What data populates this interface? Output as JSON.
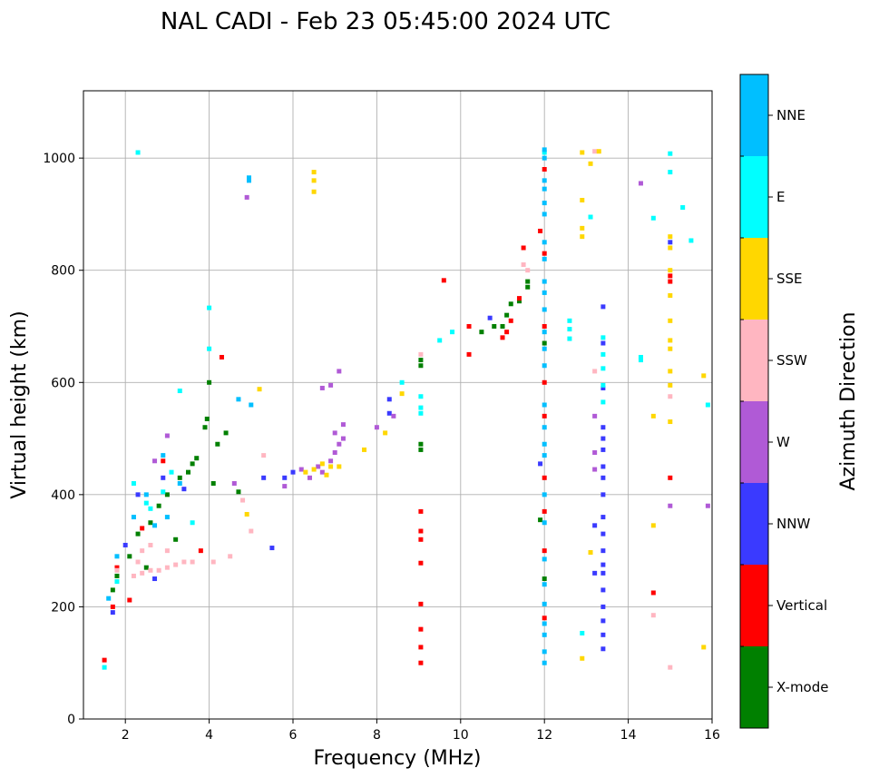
{
  "chart_data": {
    "type": "scatter",
    "title": "NAL CADI - Feb 23 05:45:00 2024 UTC",
    "xlabel": "Frequency (MHz)",
    "ylabel": "Virtual height (km)",
    "xlim": [
      1,
      16
    ],
    "ylim": [
      0,
      1120
    ],
    "xticks": [
      2,
      4,
      6,
      8,
      10,
      12,
      14,
      16
    ],
    "yticks": [
      0,
      200,
      400,
      600,
      800,
      1000
    ],
    "grid": true,
    "colorbar": {
      "label": "Azimuth Direction",
      "categories": [
        "X-mode",
        "Vertical",
        "NNW",
        "W",
        "SSW",
        "SSE",
        "E",
        "NNE"
      ],
      "colors": [
        "#008000",
        "#ff0000",
        "#3a3aff",
        "#b05ad6",
        "#ffb6c1",
        "#ffd700",
        "#00ffff",
        "#00bfff"
      ]
    },
    "series": [
      {
        "name": "X-mode",
        "points": [
          [
            3.6,
            455
          ],
          [
            3.7,
            465
          ],
          [
            3.9,
            520
          ],
          [
            3.95,
            535
          ],
          [
            4.0,
            600
          ],
          [
            3.5,
            440
          ],
          [
            3.3,
            430
          ],
          [
            3.0,
            400
          ],
          [
            2.8,
            380
          ],
          [
            2.6,
            350
          ],
          [
            2.3,
            330
          ],
          [
            2.1,
            290
          ],
          [
            1.8,
            255
          ],
          [
            1.7,
            230
          ],
          [
            4.2,
            490
          ],
          [
            4.4,
            510
          ],
          [
            4.7,
            405
          ],
          [
            9.05,
            490
          ],
          [
            9.05,
            480
          ],
          [
            9.05,
            640
          ],
          [
            9.05,
            630
          ],
          [
            10.5,
            690
          ],
          [
            10.8,
            700
          ],
          [
            11.0,
            700
          ],
          [
            11.1,
            720
          ],
          [
            11.2,
            740
          ],
          [
            11.4,
            745
          ],
          [
            11.6,
            770
          ],
          [
            11.6,
            780
          ],
          [
            12.0,
            250
          ],
          [
            12.0,
            670
          ],
          [
            11.9,
            355
          ],
          [
            4.1,
            420
          ],
          [
            3.2,
            320
          ],
          [
            2.5,
            270
          ]
        ]
      },
      {
        "name": "Vertical",
        "points": [
          [
            9.05,
            100
          ],
          [
            9.05,
            128
          ],
          [
            9.05,
            160
          ],
          [
            9.05,
            205
          ],
          [
            9.05,
            278
          ],
          [
            9.05,
            320
          ],
          [
            9.05,
            335
          ],
          [
            9.05,
            370
          ],
          [
            11.0,
            680
          ],
          [
            11.1,
            690
          ],
          [
            11.2,
            710
          ],
          [
            11.4,
            750
          ],
          [
            11.5,
            840
          ],
          [
            11.9,
            870
          ],
          [
            12.0,
            180
          ],
          [
            12.0,
            300
          ],
          [
            12.0,
            370
          ],
          [
            12.0,
            430
          ],
          [
            12.0,
            540
          ],
          [
            12.0,
            600
          ],
          [
            12.0,
            700
          ],
          [
            12.0,
            830
          ],
          [
            12.0,
            980
          ],
          [
            15.0,
            430
          ],
          [
            15.0,
            780
          ],
          [
            15.0,
            790
          ],
          [
            14.6,
            225
          ],
          [
            10.2,
            700
          ],
          [
            10.2,
            650
          ],
          [
            9.6,
            782
          ],
          [
            4.3,
            645
          ],
          [
            1.5,
            105
          ],
          [
            2.1,
            212
          ],
          [
            3.8,
            300
          ],
          [
            2.9,
            460
          ],
          [
            2.4,
            340
          ],
          [
            1.8,
            270
          ],
          [
            1.7,
            200
          ]
        ]
      },
      {
        "name": "NNW",
        "points": [
          [
            13.4,
            125
          ],
          [
            13.4,
            150
          ],
          [
            13.4,
            175
          ],
          [
            13.4,
            200
          ],
          [
            13.4,
            230
          ],
          [
            13.4,
            260
          ],
          [
            13.4,
            275
          ],
          [
            13.4,
            300
          ],
          [
            13.4,
            330
          ],
          [
            13.4,
            360
          ],
          [
            13.4,
            400
          ],
          [
            13.4,
            430
          ],
          [
            13.4,
            450
          ],
          [
            13.4,
            480
          ],
          [
            13.4,
            500
          ],
          [
            13.4,
            520
          ],
          [
            13.4,
            590
          ],
          [
            13.4,
            670
          ],
          [
            13.4,
            735
          ],
          [
            13.2,
            260
          ],
          [
            13.2,
            345
          ],
          [
            15.0,
            850
          ],
          [
            11.9,
            455
          ],
          [
            8.3,
            545
          ],
          [
            8.3,
            570
          ],
          [
            5.5,
            305
          ],
          [
            6.0,
            440
          ],
          [
            5.3,
            430
          ],
          [
            5.8,
            430
          ],
          [
            1.7,
            190
          ],
          [
            2.3,
            400
          ],
          [
            2.9,
            430
          ],
          [
            10.7,
            715
          ],
          [
            3.4,
            410
          ],
          [
            2.0,
            310
          ],
          [
            2.7,
            250
          ]
        ]
      },
      {
        "name": "W",
        "points": [
          [
            6.7,
            440
          ],
          [
            6.9,
            460
          ],
          [
            7.0,
            475
          ],
          [
            7.1,
            490
          ],
          [
            7.2,
            500
          ],
          [
            7.0,
            510
          ],
          [
            7.2,
            525
          ],
          [
            6.4,
            430
          ],
          [
            6.6,
            450
          ],
          [
            7.1,
            620
          ],
          [
            6.7,
            590
          ],
          [
            6.9,
            595
          ],
          [
            13.2,
            475
          ],
          [
            13.2,
            445
          ],
          [
            13.2,
            540
          ],
          [
            15.0,
            380
          ],
          [
            15.9,
            380
          ],
          [
            14.3,
            955
          ],
          [
            4.9,
            930
          ],
          [
            8.0,
            520
          ],
          [
            8.4,
            540
          ],
          [
            5.8,
            415
          ],
          [
            3.0,
            505
          ],
          [
            2.7,
            460
          ],
          [
            4.6,
            420
          ],
          [
            6.2,
            445
          ]
        ]
      },
      {
        "name": "SSW",
        "points": [
          [
            2.2,
            255
          ],
          [
            2.4,
            260
          ],
          [
            2.6,
            265
          ],
          [
            2.8,
            265
          ],
          [
            3.0,
            270
          ],
          [
            3.2,
            275
          ],
          [
            3.4,
            280
          ],
          [
            3.6,
            280
          ],
          [
            4.1,
            280
          ],
          [
            4.5,
            290
          ],
          [
            2.4,
            300
          ],
          [
            2.6,
            310
          ],
          [
            3.0,
            300
          ],
          [
            2.3,
            280
          ],
          [
            5.0,
            335
          ],
          [
            5.3,
            470
          ],
          [
            4.8,
            390
          ],
          [
            13.2,
            620
          ],
          [
            15.0,
            92
          ],
          [
            15.0,
            575
          ],
          [
            14.6,
            185
          ],
          [
            9.05,
            650
          ],
          [
            11.5,
            810
          ],
          [
            11.6,
            800
          ],
          [
            13.2,
            1012
          ],
          [
            1.8,
            265
          ]
        ]
      },
      {
        "name": "SSE",
        "points": [
          [
            6.3,
            440
          ],
          [
            6.5,
            445
          ],
          [
            6.7,
            455
          ],
          [
            6.9,
            450
          ],
          [
            7.1,
            450
          ],
          [
            6.8,
            435
          ],
          [
            6.5,
            975
          ],
          [
            6.5,
            960
          ],
          [
            6.5,
            940
          ],
          [
            12.9,
            1010
          ],
          [
            13.1,
            990
          ],
          [
            12.9,
            925
          ],
          [
            12.9,
            875
          ],
          [
            12.9,
            860
          ],
          [
            13.3,
            1012
          ],
          [
            12.9,
            108
          ],
          [
            13.1,
            297
          ],
          [
            15.0,
            860
          ],
          [
            15.0,
            840
          ],
          [
            15.0,
            800
          ],
          [
            15.0,
            755
          ],
          [
            15.0,
            710
          ],
          [
            15.0,
            675
          ],
          [
            15.0,
            660
          ],
          [
            15.0,
            620
          ],
          [
            15.0,
            595
          ],
          [
            15.0,
            530
          ],
          [
            14.6,
            540
          ],
          [
            14.6,
            345
          ],
          [
            15.8,
            612
          ],
          [
            15.8,
            128
          ],
          [
            8.2,
            510
          ],
          [
            8.6,
            580
          ],
          [
            5.2,
            588
          ],
          [
            4.9,
            365
          ],
          [
            7.7,
            480
          ]
        ]
      },
      {
        "name": "E",
        "points": [
          [
            9.05,
            545
          ],
          [
            9.05,
            555
          ],
          [
            9.05,
            575
          ],
          [
            13.4,
            565
          ],
          [
            13.4,
            595
          ],
          [
            13.4,
            625
          ],
          [
            13.4,
            650
          ],
          [
            13.4,
            680
          ],
          [
            12.6,
            710
          ],
          [
            12.6,
            695
          ],
          [
            12.6,
            678
          ],
          [
            12.9,
            153
          ],
          [
            13.1,
            895
          ],
          [
            14.3,
            640
          ],
          [
            14.3,
            645
          ],
          [
            14.6,
            893
          ],
          [
            15.0,
            975
          ],
          [
            15.0,
            1008
          ],
          [
            15.3,
            912
          ],
          [
            15.5,
            853
          ],
          [
            15.9,
            560
          ],
          [
            9.5,
            675
          ],
          [
            9.8,
            690
          ],
          [
            8.6,
            600
          ],
          [
            2.3,
            1010
          ],
          [
            4.0,
            733
          ],
          [
            4.0,
            660
          ],
          [
            3.3,
            585
          ],
          [
            2.5,
            385
          ],
          [
            2.2,
            420
          ],
          [
            2.9,
            405
          ],
          [
            2.6,
            375
          ],
          [
            1.8,
            245
          ],
          [
            1.5,
            92
          ],
          [
            3.1,
            440
          ],
          [
            3.6,
            350
          ],
          [
            12.0,
            1010
          ]
        ]
      },
      {
        "name": "NNE",
        "points": [
          [
            12.0,
            1015
          ],
          [
            12.0,
            1000
          ],
          [
            12.0,
            960
          ],
          [
            12.0,
            945
          ],
          [
            12.0,
            920
          ],
          [
            12.0,
            900
          ],
          [
            12.0,
            850
          ],
          [
            12.0,
            820
          ],
          [
            12.0,
            780
          ],
          [
            12.0,
            760
          ],
          [
            12.0,
            730
          ],
          [
            12.0,
            690
          ],
          [
            12.0,
            660
          ],
          [
            12.0,
            630
          ],
          [
            12.0,
            560
          ],
          [
            12.0,
            520
          ],
          [
            12.0,
            490
          ],
          [
            12.0,
            470
          ],
          [
            12.0,
            400
          ],
          [
            12.0,
            350
          ],
          [
            12.0,
            285
          ],
          [
            12.0,
            240
          ],
          [
            12.0,
            205
          ],
          [
            12.0,
            170
          ],
          [
            12.0,
            150
          ],
          [
            12.0,
            120
          ],
          [
            12.0,
            100
          ],
          [
            4.95,
            965
          ],
          [
            4.95,
            960
          ],
          [
            5.0,
            560
          ],
          [
            4.7,
            570
          ],
          [
            2.7,
            345
          ],
          [
            2.5,
            400
          ],
          [
            3.0,
            360
          ],
          [
            1.6,
            215
          ],
          [
            1.8,
            290
          ],
          [
            2.2,
            360
          ],
          [
            3.3,
            420
          ],
          [
            2.9,
            470
          ]
        ]
      }
    ]
  }
}
